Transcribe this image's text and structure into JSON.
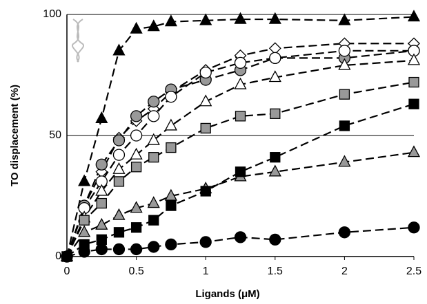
{
  "chart_data": {
    "type": "line",
    "x_label": "Ligands (μM)",
    "y_label": "TO displacement (%)",
    "x": [
      0,
      0.125,
      0.25,
      0.375,
      0.5,
      0.625,
      0.75,
      1,
      1.25,
      1.5,
      2,
      2.5
    ],
    "xlim": [
      0,
      2.5
    ],
    "xticks": [
      0,
      0.5,
      1,
      1.5,
      2,
      2.5
    ],
    "ylim": [
      0,
      100
    ],
    "yticks": [
      0,
      50,
      100
    ],
    "grid": true,
    "series": [
      {
        "marker": "triangle",
        "color": "#000000",
        "values": [
          0,
          31,
          57,
          85,
          94,
          95,
          97,
          97.5,
          98,
          98,
          97.5,
          99
        ]
      },
      {
        "marker": "diamond",
        "color": "#ffffff",
        "values": [
          0,
          21,
          35,
          49,
          56,
          61,
          68,
          77,
          83,
          86,
          88,
          88
        ]
      },
      {
        "marker": "circle",
        "color": "#999999",
        "values": [
          0,
          21,
          38,
          48,
          58,
          64,
          69,
          73,
          77,
          82,
          82,
          85
        ]
      },
      {
        "marker": "circle",
        "color": "#ffffff",
        "values": [
          0,
          20,
          31,
          42,
          50,
          58,
          66,
          76,
          80,
          82,
          85,
          85
        ]
      },
      {
        "marker": "triangle",
        "color": "#ffffff",
        "values": [
          0,
          16,
          27,
          36,
          42,
          48,
          54,
          64,
          71,
          74,
          79,
          81
        ]
      },
      {
        "marker": "square",
        "color": "#999999",
        "values": [
          0,
          15,
          22,
          31,
          37,
          41,
          45,
          53,
          58,
          59,
          67,
          72
        ]
      },
      {
        "marker": "triangle",
        "color": "#999999",
        "values": [
          0,
          10,
          13,
          17,
          20,
          22,
          25,
          28,
          33,
          35,
          39,
          43
        ]
      },
      {
        "marker": "square",
        "color": "#000000",
        "values": [
          0,
          5,
          7,
          10,
          12,
          15,
          21,
          27,
          35,
          41,
          54,
          63
        ]
      },
      {
        "marker": "circle",
        "color": "#000000",
        "values": [
          0,
          2,
          3,
          3,
          3,
          4,
          5,
          6,
          8,
          7,
          10,
          12
        ]
      }
    ]
  }
}
